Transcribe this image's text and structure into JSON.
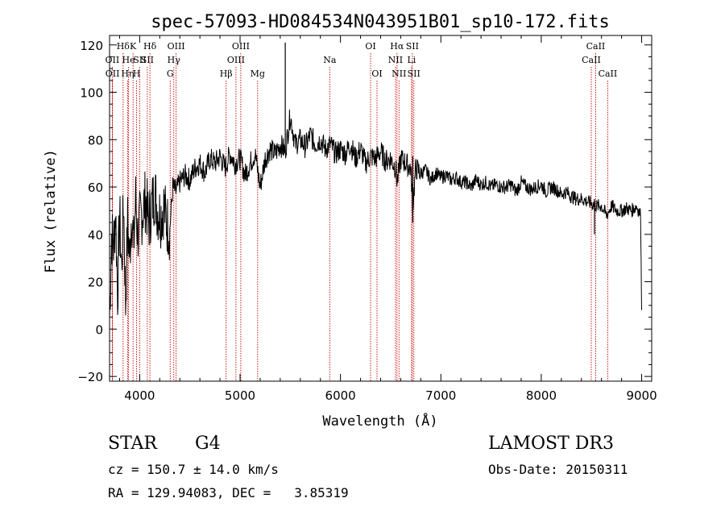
{
  "chart_data": {
    "type": "line",
    "title": "spec-57093-HD084534N043951B01_sp10-172.fits",
    "xlabel": "Wavelength (Å)",
    "ylabel": "Flux (relative)",
    "xlim": [
      3700,
      9100
    ],
    "ylim": [
      -22,
      124
    ],
    "x_ticks": [
      4000,
      5000,
      6000,
      7000,
      8000,
      9000
    ],
    "y_ticks": [
      -20,
      0,
      20,
      40,
      60,
      80,
      100,
      120
    ],
    "grid": false,
    "legend": "none",
    "line_color": "#000000",
    "marker_color": "#cc0000",
    "series": [
      {
        "x": [
          3700,
          3720,
          3740,
          3760,
          3780,
          3800,
          3820,
          3840,
          3860,
          3880,
          3900,
          3920,
          3940,
          3960,
          3980,
          4000,
          4030,
          4060,
          4090,
          4120,
          4150,
          4180,
          4210,
          4240,
          4270,
          4300,
          4330,
          4360,
          4400,
          4450,
          4500,
          4550,
          4600,
          4650,
          4700,
          4750,
          4800,
          4850,
          4900,
          4950,
          5000,
          5050,
          5100,
          5150,
          5200,
          5250,
          5300,
          5350,
          5400,
          5450,
          5500,
          5550,
          5600,
          5650,
          5700,
          5750,
          5800,
          5850,
          5900,
          5950,
          6000,
          6050,
          6100,
          6150,
          6200,
          6250,
          6300,
          6350,
          6400,
          6450,
          6500,
          6550,
          6565,
          6600,
          6650,
          6700,
          6710,
          6720,
          6750,
          6800,
          6850,
          6900,
          6950,
          7000,
          7050,
          7100,
          7150,
          7200,
          7250,
          7300,
          7350,
          7400,
          7450,
          7500,
          7550,
          7600,
          7650,
          7700,
          7750,
          7800,
          7850,
          7900,
          7950,
          8000,
          8050,
          8100,
          8150,
          8200,
          8250,
          8300,
          8350,
          8400,
          8450,
          8500,
          8550,
          8600,
          8650,
          8700,
          8750,
          8800,
          8850,
          8900,
          8950,
          8990,
          9000
        ],
        "y": [
          5,
          40,
          35,
          50,
          15,
          48,
          25,
          55,
          10,
          45,
          30,
          50,
          35,
          55,
          40,
          45,
          50,
          55,
          45,
          52,
          58,
          50,
          48,
          52,
          45,
          42,
          60,
          58,
          62,
          65,
          63,
          68,
          70,
          66,
          72,
          70,
          73,
          68,
          74,
          70,
          72,
          65,
          70,
          74,
          60,
          72,
          76,
          74,
          78,
          75,
          90,
          78,
          80,
          77,
          82,
          78,
          80,
          76,
          78,
          74,
          76,
          74,
          78,
          72,
          76,
          70,
          73,
          72,
          75,
          71,
          72,
          68,
          62,
          72,
          70,
          68,
          60,
          52,
          68,
          66,
          67,
          63,
          66,
          64,
          65,
          63,
          64,
          62,
          62,
          60,
          63,
          61,
          62,
          60,
          61,
          60,
          60,
          61,
          58,
          62,
          60,
          59,
          60,
          61,
          58,
          60,
          59,
          57,
          58,
          56,
          55,
          55,
          54,
          53,
          52,
          52,
          48,
          52,
          50,
          50,
          51,
          50,
          52,
          48,
          8
        ]
      }
    ],
    "spectral_lines": [
      {
        "label": "Hδ",
        "x": 3835,
        "row": 0,
        "anchor": "middle"
      },
      {
        "label": "OII",
        "x": 3727,
        "row": 1,
        "anchor": "middle"
      },
      {
        "label": "OII",
        "x": 3729,
        "row": 2,
        "anchor": "middle"
      },
      {
        "label": "He",
        "x": 3889,
        "row": 1,
        "anchor": "middle"
      },
      {
        "label": "Hη",
        "x": 3880,
        "row": 2,
        "anchor": "middle"
      },
      {
        "label": "K",
        "x": 3934,
        "row": 0,
        "anchor": "middle"
      },
      {
        "label": "H",
        "x": 3969,
        "row": 2,
        "anchor": "middle"
      },
      {
        "label": "SII",
        "x": 4000,
        "row": 1,
        "anchor": "middle"
      },
      {
        "label": "Hδ",
        "x": 4102,
        "row": 0,
        "anchor": "middle"
      },
      {
        "label": "SII",
        "x": 4076,
        "row": 1,
        "anchor": "middle"
      },
      {
        "label": "OIII",
        "x": 4363,
        "row": 0,
        "anchor": "middle"
      },
      {
        "label": "Hγ",
        "x": 4340,
        "row": 1,
        "anchor": "middle"
      },
      {
        "label": "G",
        "x": 4304,
        "row": 2,
        "anchor": "middle"
      },
      {
        "label": "OIII",
        "x": 5007,
        "row": 0,
        "anchor": "middle"
      },
      {
        "label": "OIII",
        "x": 4959,
        "row": 1,
        "anchor": "middle"
      },
      {
        "label": "Hβ",
        "x": 4861,
        "row": 2,
        "anchor": "middle"
      },
      {
        "label": "Mg",
        "x": 5175,
        "row": 2,
        "anchor": "middle"
      },
      {
        "label": "Na",
        "x": 5893,
        "row": 1,
        "anchor": "middle"
      },
      {
        "label": "OI",
        "x": 6300,
        "row": 0,
        "anchor": "middle"
      },
      {
        "label": "OI",
        "x": 6364,
        "row": 2,
        "anchor": "middle"
      },
      {
        "label": "Hα",
        "x": 6563,
        "row": 0,
        "anchor": "middle"
      },
      {
        "label": "NII",
        "x": 6548,
        "row": 1,
        "anchor": "middle"
      },
      {
        "label": "NII",
        "x": 6583,
        "row": 2,
        "anchor": "middle"
      },
      {
        "label": "SII",
        "x": 6716,
        "row": 0,
        "anchor": "middle"
      },
      {
        "label": "Li",
        "x": 6708,
        "row": 1,
        "anchor": "middle"
      },
      {
        "label": "SII",
        "x": 6731,
        "row": 2,
        "anchor": "middle"
      },
      {
        "label": "CaII",
        "x": 8542,
        "row": 0,
        "anchor": "middle"
      },
      {
        "label": "CaII",
        "x": 8498,
        "row": 1,
        "anchor": "middle"
      },
      {
        "label": "CaII",
        "x": 8662,
        "row": 2,
        "anchor": "middle"
      }
    ]
  },
  "info": {
    "object_class": "STAR",
    "subclass": "G4",
    "survey": "LAMOST DR3",
    "redshift": "cz = 150.7 ± 14.0 km/s",
    "obs_date": "Obs-Date: 20150311",
    "coords": "RA = 129.94083, DEC =   3.85319"
  }
}
